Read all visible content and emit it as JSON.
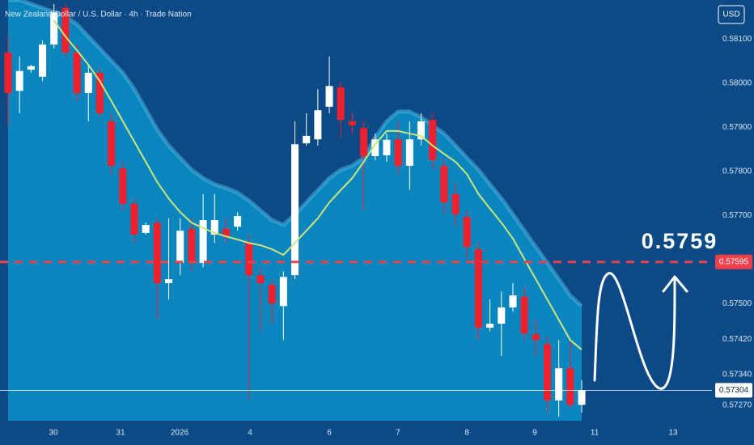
{
  "chart_data": {
    "type": "candlestick",
    "title": "New Zealand Dollar / U.S. Dollar · 4h · Trade Nation",
    "currency": "USD",
    "ylim": [
      0.57235,
      0.58189
    ],
    "yticks": [
      {
        "value": 0.581,
        "label": "0.58100"
      },
      {
        "value": 0.58,
        "label": "0.58000"
      },
      {
        "value": 0.579,
        "label": "0.57900"
      },
      {
        "value": 0.578,
        "label": "0.57800"
      },
      {
        "value": 0.577,
        "label": "0.57700"
      },
      {
        "value": 0.575,
        "label": "0.57500"
      },
      {
        "value": 0.5742,
        "label": "0.57420"
      },
      {
        "value": 0.5734,
        "label": "0.57340"
      },
      {
        "value": 0.5727,
        "label": "0.57270"
      }
    ],
    "xlim": [
      -0.705,
      61.35
    ],
    "xticks": [
      {
        "value": 3.95,
        "label": "30"
      },
      {
        "value": 9.8,
        "label": "31"
      },
      {
        "value": 14.95,
        "label": "2026"
      },
      {
        "value": 21.09,
        "label": "4"
      },
      {
        "value": 28.0,
        "label": "6"
      },
      {
        "value": 33.99,
        "label": "7"
      },
      {
        "value": 39.99,
        "label": "8"
      },
      {
        "value": 45.91,
        "label": "9"
      },
      {
        "value": 51.13,
        "label": "11"
      },
      {
        "value": 57.97,
        "label": "13"
      }
    ],
    "candles": {
      "up_color": "#ffffff",
      "down_color": "#f0212e",
      "open": [
        0.5807,
        0.57983,
        0.58031,
        0.58015,
        0.58088,
        0.58171,
        0.5807,
        0.57978,
        0.58024,
        0.57914,
        0.57807,
        0.57727,
        0.57661,
        0.57684,
        0.57547,
        0.57593,
        0.5767,
        0.57593,
        0.57657,
        0.5767,
        0.57675,
        0.57638,
        0.57565,
        0.57543,
        0.57495,
        0.57565,
        0.57864,
        0.57873,
        0.57947,
        0.57991,
        0.57914,
        0.57899,
        0.57835,
        0.57837,
        0.57873,
        0.57813,
        0.57873,
        0.57917,
        0.57813,
        0.57749,
        0.57697,
        0.57624,
        0.57446,
        0.57455,
        0.57492,
        0.57516,
        0.57431,
        0.57409,
        0.57281,
        0.57354,
        0.57271
      ],
      "high": [
        0.58106,
        0.58061,
        0.58042,
        0.58097,
        0.5818,
        0.5818,
        0.58088,
        0.58042,
        0.58033,
        0.57932,
        0.57822,
        0.57739,
        0.57684,
        0.57694,
        0.57694,
        0.57694,
        0.57694,
        0.57749,
        0.57749,
        0.57694,
        0.57708,
        0.57657,
        0.57583,
        0.57556,
        0.57574,
        0.57914,
        0.57932,
        0.57987,
        0.58061,
        0.58005,
        0.57932,
        0.57914,
        0.57886,
        0.57886,
        0.57914,
        0.57914,
        0.57932,
        0.57932,
        0.57831,
        0.57776,
        0.57712,
        0.57638,
        0.5751,
        0.57528,
        0.57547,
        0.57538,
        0.57464,
        0.57427,
        0.57418,
        0.57418,
        0.57327
      ],
      "low": [
        0.57905,
        0.57932,
        0.58024,
        0.58005,
        0.58079,
        0.58061,
        0.5796,
        0.57914,
        0.57923,
        0.57794,
        0.57712,
        0.57638,
        0.57657,
        0.57464,
        0.5751,
        0.57565,
        0.57574,
        0.57583,
        0.57638,
        0.57638,
        0.57666,
        0.57281,
        0.57437,
        0.57455,
        0.57418,
        0.57556,
        0.57859,
        0.57859,
        0.57932,
        0.57877,
        0.57886,
        0.57712,
        0.57826,
        0.57822,
        0.57794,
        0.57758,
        0.57859,
        0.57804,
        0.57703,
        0.57675,
        0.57602,
        0.57418,
        0.57437,
        0.57382,
        0.57483,
        0.57418,
        0.57382,
        0.57253,
        0.57244,
        0.57262,
        0.57253
      ],
      "close": [
        0.57978,
        0.58028,
        0.58039,
        0.58088,
        0.58161,
        0.5807,
        0.57978,
        0.58024,
        0.57932,
        0.57813,
        0.57727,
        0.57657,
        0.57679,
        0.57547,
        0.57556,
        0.57666,
        0.57593,
        0.5769,
        0.5769,
        0.57653,
        0.57699,
        0.57565,
        0.57547,
        0.57501,
        0.57561,
        0.57862,
        0.57881,
        0.57939,
        0.57994,
        0.57917,
        0.57905,
        0.57835,
        0.57873,
        0.57872,
        0.57813,
        0.57873,
        0.57914,
        0.57826,
        0.5773,
        0.57703,
        0.57629,
        0.57446,
        0.57455,
        0.57492,
        0.57519,
        0.57433,
        0.57418,
        0.57281,
        0.57354,
        0.57271,
        0.57304
      ]
    },
    "envelope": {
      "color": "#0a86bf",
      "edge_color": "#4fb0dc",
      "values": [
        0.58189,
        0.58189,
        0.5818,
        0.58171,
        0.58161,
        0.58152,
        0.58134,
        0.58106,
        0.58079,
        0.58051,
        0.58024,
        0.57987,
        0.57941,
        0.57895,
        0.57859,
        0.57831,
        0.57804,
        0.57785,
        0.57771,
        0.57763,
        0.57752,
        0.57734,
        0.57712,
        0.5769,
        0.57679,
        0.57703,
        0.5773,
        0.57758,
        0.57785,
        0.57804,
        0.57813,
        0.57831,
        0.57877,
        0.57914,
        0.57936,
        0.57936,
        0.57923,
        0.57905,
        0.57886,
        0.57859,
        0.57831,
        0.57804,
        0.57771,
        0.57739,
        0.57703,
        0.57666,
        0.57629,
        0.57593,
        0.57556,
        0.57519,
        0.57495
      ]
    },
    "ma": {
      "color": "#c9e77d",
      "values": [
        null,
        null,
        null,
        null,
        0.58143,
        0.58106,
        0.58075,
        0.58042,
        0.58005,
        0.5796,
        0.57914,
        0.57868,
        0.57822,
        0.57776,
        0.57739,
        0.57708,
        0.57684,
        0.57672,
        0.57661,
        0.57653,
        0.57646,
        0.57638,
        0.57633,
        0.57624,
        0.57611,
        0.57638,
        0.57666,
        0.57694,
        0.5773,
        0.57758,
        0.57785,
        0.57822,
        0.57862,
        0.57892,
        0.57892,
        0.57886,
        0.57881,
        0.57859,
        0.5784,
        0.57822,
        0.57794,
        0.57749,
        0.57716,
        0.57684,
        0.57648,
        0.57602,
        0.57556,
        0.5751,
        0.57464,
        0.57418,
        0.57396
      ]
    },
    "price_lines": [
      {
        "value": 0.57595,
        "color": "#f0404a",
        "dashed": true
      },
      {
        "value": 0.57304,
        "color": "#ffffff",
        "dashed": false
      }
    ],
    "annotation": "0.5759"
  }
}
